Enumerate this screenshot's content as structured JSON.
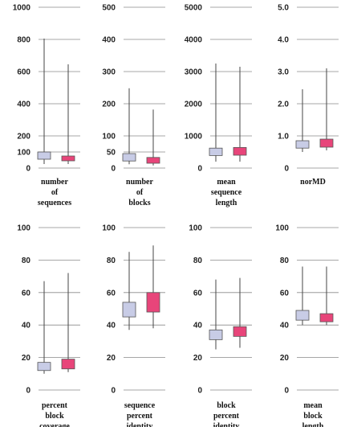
{
  "chart_data": [
    {
      "type": "box",
      "xlabel": "number of sequences",
      "label_lines": [
        "number",
        "of",
        "sequences"
      ],
      "ylim": [
        0,
        1000
      ],
      "yticks": [
        0,
        200,
        400,
        600,
        800,
        1000
      ],
      "tick_labels": [
        "0",
        "200",
        "400",
        "600",
        "800",
        "1000"
      ],
      "minor_ticks": [
        100
      ],
      "minor_labels": [
        "100"
      ],
      "boxes": [
        {
          "whisker_low": 25,
          "q1": 55,
          "q3": 100,
          "whisker_high": 805,
          "color": "#c8cce6"
        },
        {
          "whisker_low": 25,
          "q1": 45,
          "q3": 75,
          "whisker_high": 645,
          "color": "#e8457a"
        }
      ]
    },
    {
      "type": "box",
      "xlabel": "number of blocks",
      "label_lines": [
        "number",
        "of",
        "blocks"
      ],
      "ylim": [
        0,
        500
      ],
      "yticks": [
        0,
        100,
        200,
        300,
        400,
        500
      ],
      "tick_labels": [
        "0",
        "100",
        "200",
        "300",
        "400",
        "500"
      ],
      "minor_ticks": [
        50
      ],
      "minor_labels": [
        "50"
      ],
      "boxes": [
        {
          "whisker_low": 12,
          "q1": 22,
          "q3": 45,
          "whisker_high": 248,
          "color": "#c8cce6"
        },
        {
          "whisker_low": 8,
          "q1": 15,
          "q3": 33,
          "whisker_high": 182,
          "color": "#e8457a"
        }
      ]
    },
    {
      "type": "box",
      "xlabel": "mean sequence length",
      "label_lines": [
        "mean",
        "sequence",
        "length"
      ],
      "ylim": [
        0,
        5000
      ],
      "yticks": [
        0,
        1000,
        2000,
        3000,
        4000,
        5000
      ],
      "tick_labels": [
        "0",
        "1000",
        "2000",
        "3000",
        "4000",
        "5000"
      ],
      "minor_ticks": [],
      "minor_labels": [],
      "boxes": [
        {
          "whisker_low": 200,
          "q1": 390,
          "q3": 620,
          "whisker_high": 3250,
          "color": "#c8cce6"
        },
        {
          "whisker_low": 200,
          "q1": 400,
          "q3": 640,
          "whisker_high": 3150,
          "color": "#e8457a"
        }
      ]
    },
    {
      "type": "box",
      "xlabel": "norMD",
      "label_lines": [
        "norMD"
      ],
      "ylim": [
        0,
        5
      ],
      "yticks": [
        0,
        1,
        2,
        3,
        4,
        5
      ],
      "tick_labels": [
        "0",
        "1.0",
        "2.0",
        "3.0",
        "4.0",
        "5.0"
      ],
      "minor_ticks": [],
      "minor_labels": [],
      "boxes": [
        {
          "whisker_low": 0.5,
          "q1": 0.62,
          "q3": 0.85,
          "whisker_high": 2.45,
          "color": "#c8cce6"
        },
        {
          "whisker_low": 0.55,
          "q1": 0.65,
          "q3": 0.9,
          "whisker_high": 3.1,
          "color": "#e8457a"
        }
      ]
    },
    {
      "type": "box",
      "xlabel": "percent block coverage",
      "label_lines": [
        "percent",
        "block",
        "coverage"
      ],
      "ylim": [
        0,
        100
      ],
      "yticks": [
        0,
        20,
        40,
        60,
        80,
        100
      ],
      "tick_labels": [
        "0",
        "20",
        "40",
        "60",
        "80",
        "100"
      ],
      "minor_ticks": [],
      "minor_labels": [],
      "boxes": [
        {
          "whisker_low": 10,
          "q1": 12,
          "q3": 17,
          "whisker_high": 67,
          "color": "#c8cce6"
        },
        {
          "whisker_low": 11,
          "q1": 13,
          "q3": 19,
          "whisker_high": 72,
          "color": "#e8457a"
        }
      ]
    },
    {
      "type": "box",
      "xlabel": "sequence percent identity",
      "label_lines": [
        "sequence",
        "percent",
        "identity"
      ],
      "ylim": [
        0,
        100
      ],
      "yticks": [
        0,
        20,
        40,
        60,
        80,
        100
      ],
      "tick_labels": [
        "0",
        "20",
        "40",
        "60",
        "80",
        "100"
      ],
      "minor_ticks": [],
      "minor_labels": [],
      "boxes": [
        {
          "whisker_low": 37,
          "q1": 45,
          "q3": 54,
          "whisker_high": 85,
          "color": "#c8cce6"
        },
        {
          "whisker_low": 38,
          "q1": 48,
          "q3": 60,
          "whisker_high": 89,
          "color": "#e8457a"
        }
      ]
    },
    {
      "type": "box",
      "xlabel": "block percent identity",
      "label_lines": [
        "block",
        "percent",
        "identity"
      ],
      "ylim": [
        0,
        100
      ],
      "yticks": [
        0,
        20,
        40,
        60,
        80,
        100
      ],
      "tick_labels": [
        "0",
        "20",
        "40",
        "60",
        "80",
        "100"
      ],
      "minor_ticks": [],
      "minor_labels": [],
      "boxes": [
        {
          "whisker_low": 25,
          "q1": 31,
          "q3": 37,
          "whisker_high": 68,
          "color": "#c8cce6"
        },
        {
          "whisker_low": 26,
          "q1": 33,
          "q3": 39,
          "whisker_high": 69,
          "color": "#e8457a"
        }
      ]
    },
    {
      "type": "box",
      "xlabel": "mean block length",
      "label_lines": [
        "mean",
        "block",
        "length"
      ],
      "ylim": [
        0,
        100
      ],
      "yticks": [
        0,
        20,
        40,
        60,
        80,
        100
      ],
      "tick_labels": [
        "0",
        "20",
        "40",
        "60",
        "80",
        "100"
      ],
      "minor_ticks": [],
      "minor_labels": [],
      "boxes": [
        {
          "whisker_low": 40,
          "q1": 43,
          "q3": 49,
          "whisker_high": 76,
          "color": "#c8cce6"
        },
        {
          "whisker_low": 40,
          "q1": 42,
          "q3": 47,
          "whisker_high": 76,
          "color": "#e8457a"
        }
      ]
    }
  ]
}
